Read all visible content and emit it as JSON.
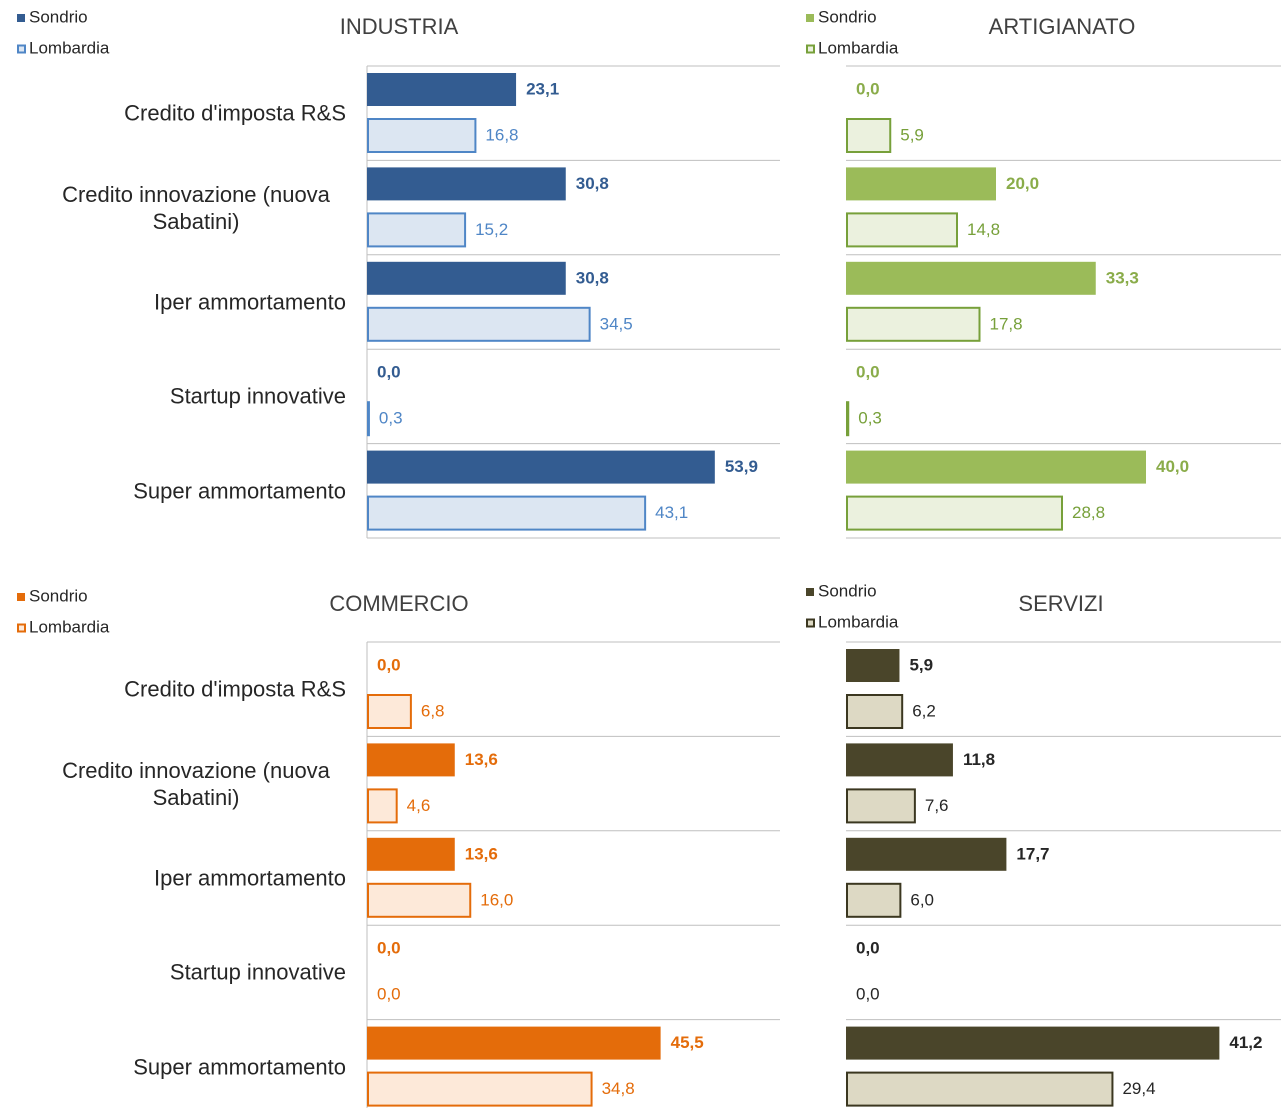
{
  "chart_data": [
    {
      "type": "bar",
      "title": "INDUSTRIA",
      "categories": [
        "Credito d'imposta R&S",
        "Credito innovazione (nuova Sabatini)",
        "Iper ammortamento",
        "Startup innovative",
        "Super ammortamento"
      ],
      "xlim": [
        0,
        64
      ],
      "series": [
        {
          "name": "Sondrio",
          "color": "#335c91",
          "fill": "#335c91",
          "values": [
            23.1,
            30.8,
            30.8,
            0.0,
            53.9
          ],
          "value_labels": [
            "23,1",
            "30,8",
            "30,8",
            "0,0",
            "53,9"
          ]
        },
        {
          "name": "Lombardia",
          "color": "#4f86c6",
          "fill": "#dce6f2",
          "values": [
            16.8,
            15.2,
            34.5,
            0.3,
            43.1
          ],
          "value_labels": [
            "16,8",
            "15,2",
            "34,5",
            "0,3",
            "43,1"
          ]
        }
      ]
    },
    {
      "type": "bar",
      "title": "ARTIGIANATO",
      "xlim": [
        0,
        58
      ],
      "series": [
        {
          "name": "Sondrio",
          "color": "#8aac4a",
          "fill": "#9bbb59",
          "values": [
            0.0,
            20.0,
            33.3,
            0.0,
            40.0
          ],
          "value_labels": [
            "0,0",
            "20,0",
            "33,3",
            "0,0",
            "40,0"
          ]
        },
        {
          "name": "Lombardia",
          "color": "#77a03a",
          "fill": "#ebf1de",
          "values": [
            5.9,
            14.8,
            17.8,
            0.3,
            28.8
          ],
          "value_labels": [
            "5,9",
            "14,8",
            "17,8",
            "0,3",
            "28,8"
          ]
        }
      ]
    },
    {
      "type": "bar",
      "title": "COMMERCIO",
      "categories": [
        "Credito d'imposta R&S",
        "Credito innovazione (nuova Sabatini)",
        "Iper ammortamento",
        "Startup innovative",
        "Super ammortamento"
      ],
      "xlim": [
        0,
        64
      ],
      "series": [
        {
          "name": "Sondrio",
          "color": "#e46c0a",
          "fill": "#e46c0a",
          "values": [
            0.0,
            13.6,
            13.6,
            0.0,
            45.5
          ],
          "value_labels": [
            "0,0",
            "13,6",
            "13,6",
            "0,0",
            "45,5"
          ]
        },
        {
          "name": "Lombardia",
          "color": "#e46c0a",
          "fill": "#fde9d9",
          "values": [
            6.8,
            4.6,
            16.0,
            0.0,
            34.8
          ],
          "value_labels": [
            "6,8",
            "4,6",
            "16,0",
            "0,0",
            "34,8"
          ]
        }
      ]
    },
    {
      "type": "bar",
      "title": "SERVIZI",
      "xlim": [
        0,
        48
      ],
      "series": [
        {
          "name": "Sondrio",
          "color": "#262626",
          "fill": "#4a452a",
          "values": [
            5.9,
            11.8,
            17.7,
            0.0,
            41.2
          ],
          "value_labels": [
            "5,9",
            "11,8",
            "17,7",
            "0,0",
            "41,2"
          ]
        },
        {
          "name": "Lombardia",
          "color": "#262626",
          "fill": "#ddd9c4",
          "stroke": "#3b3720",
          "values": [
            6.2,
            7.6,
            6.0,
            0.0,
            29.4
          ],
          "value_labels": [
            "6,2",
            "7,6",
            "6,0",
            "0,0",
            "29,4"
          ]
        }
      ]
    }
  ]
}
